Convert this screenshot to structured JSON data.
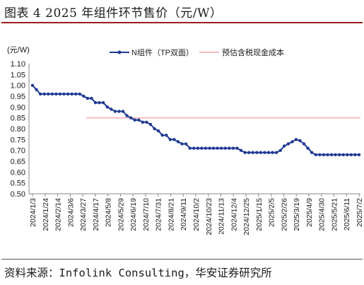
{
  "figure": {
    "title": "图表 4  2025 年组件环节售价（元/W）",
    "source": "资料来源：Infolink Consulting，华安证券研究所"
  },
  "colors": {
    "series": "#1f3a93",
    "reference": "#f3a3a3",
    "axis": "#888888"
  },
  "chart_data": {
    "type": "line",
    "y_unit_label": "(元/W)",
    "ylim": [
      0.5,
      1.1
    ],
    "yticks": [
      "1.10",
      "1.05",
      "1.00",
      "0.95",
      "0.90",
      "0.85",
      "0.80",
      "0.75",
      "0.70",
      "0.65",
      "0.60",
      "0.55",
      "0.50"
    ],
    "x_ticks": [
      "2024/1/3",
      "2024/1/24",
      "2024/2/14",
      "2024/3/6",
      "2024/3/27",
      "2024/4/17",
      "2024/5/8",
      "2024/5/29",
      "2024/6/19",
      "2024/7/10",
      "2024/7/31",
      "2024/8/21",
      "2024/9/11",
      "2024/10/2",
      "2024/10/23",
      "2024/11/13",
      "2024/12/4",
      "2024/12/25",
      "2025/1/15",
      "2025/2/5",
      "2025/2/26",
      "2025/3/19",
      "2025/4/9",
      "2025/4/30",
      "2025/5/21",
      "2025/6/11",
      "2025/7/2"
    ],
    "legend_position": "top",
    "grid": false,
    "series": [
      {
        "name": "N组件（TP双面）",
        "marker": "circle",
        "values": [
          1.0,
          0.98,
          0.96,
          0.96,
          0.96,
          0.96,
          0.96,
          0.96,
          0.96,
          0.96,
          0.96,
          0.96,
          0.96,
          0.95,
          0.94,
          0.94,
          0.92,
          0.92,
          0.92,
          0.9,
          0.89,
          0.88,
          0.88,
          0.88,
          0.86,
          0.85,
          0.84,
          0.84,
          0.83,
          0.83,
          0.82,
          0.8,
          0.79,
          0.77,
          0.77,
          0.75,
          0.75,
          0.74,
          0.73,
          0.73,
          0.71,
          0.71,
          0.71,
          0.71,
          0.71,
          0.71,
          0.71,
          0.71,
          0.71,
          0.71,
          0.71,
          0.71,
          0.71,
          0.7,
          0.69,
          0.69,
          0.69,
          0.69,
          0.69,
          0.69,
          0.69,
          0.69,
          0.69,
          0.7,
          0.72,
          0.73,
          0.74,
          0.75,
          0.745,
          0.73,
          0.71,
          0.69,
          0.68,
          0.68,
          0.68,
          0.68,
          0.68,
          0.68,
          0.68,
          0.68,
          0.68,
          0.68,
          0.68,
          0.68
        ]
      },
      {
        "name": "预估含税现金成本",
        "style": "line",
        "value": 0.85
      }
    ]
  }
}
